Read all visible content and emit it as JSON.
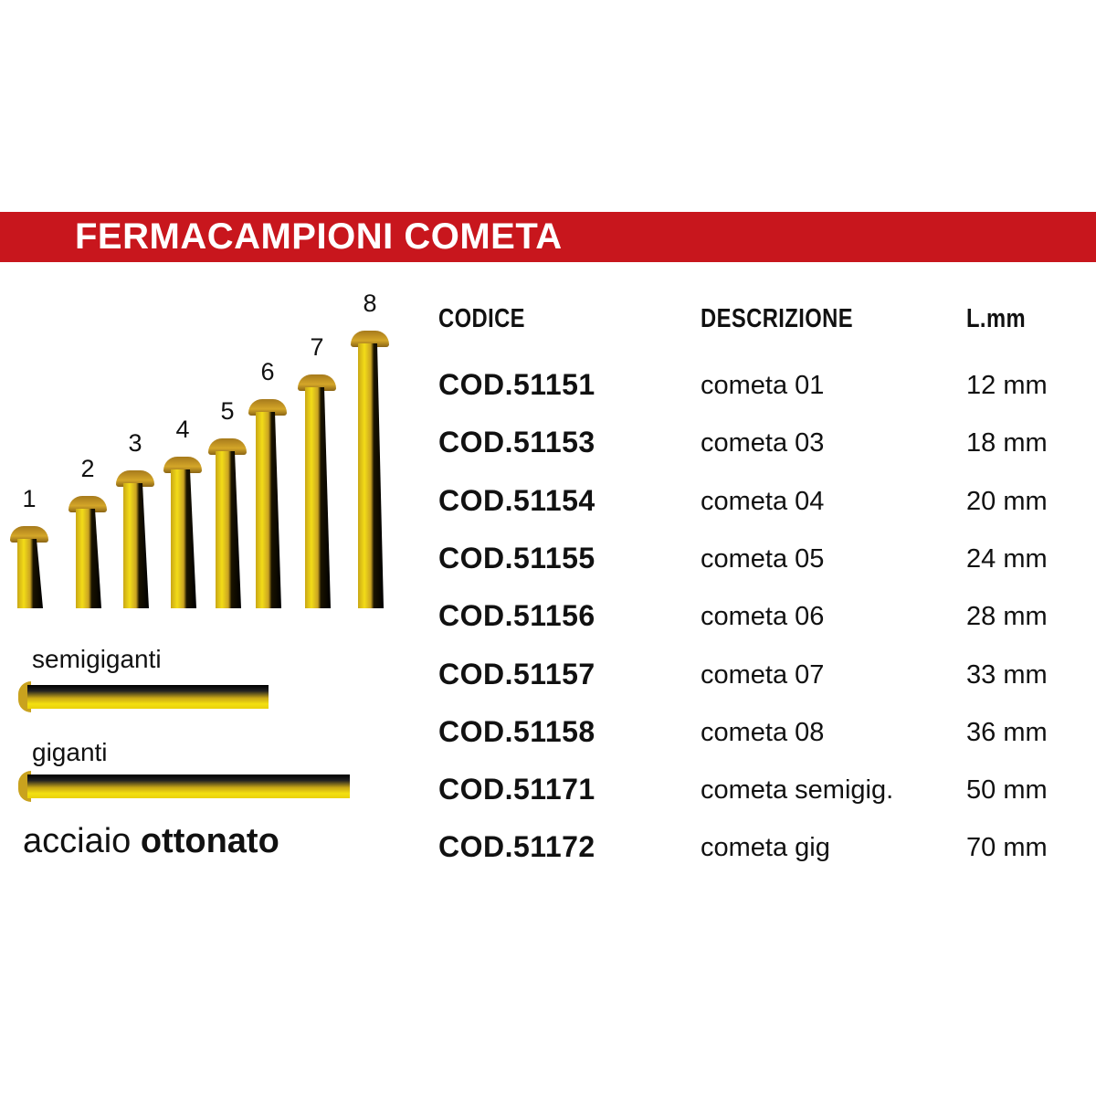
{
  "banner": {
    "title": "FERMACAMPIONI COMETA",
    "color": "#c8161d"
  },
  "nails": {
    "numbers": [
      "1",
      "2",
      "3",
      "4",
      "5",
      "6",
      "7",
      "8"
    ],
    "semigiganti_label": "semigiganti",
    "giganti_label": "giganti",
    "material_light": "acciaio ",
    "material_bold": "ottonato"
  },
  "table": {
    "headers": {
      "code": "CODICE",
      "description": "DESCRIZIONE",
      "length": "L.mm"
    },
    "rows": [
      {
        "code": "COD.51151",
        "description": "cometa 01",
        "length": "12 mm"
      },
      {
        "code": "COD.51153",
        "description": "cometa 03",
        "length": "18 mm"
      },
      {
        "code": "COD.51154",
        "description": "cometa 04",
        "length": "20 mm"
      },
      {
        "code": "COD.51155",
        "description": "cometa 05",
        "length": "24 mm"
      },
      {
        "code": "COD.51156",
        "description": "cometa 06",
        "length": "28 mm"
      },
      {
        "code": "COD.51157",
        "description": "cometa 07",
        "length": "33 mm"
      },
      {
        "code": "COD.51158",
        "description": "cometa 08",
        "length": "36 mm"
      },
      {
        "code": "COD.51171",
        "description": "cometa semigig.",
        "length": "50 mm"
      },
      {
        "code": "COD.51172",
        "description": "cometa gig",
        "length": "70 mm"
      }
    ]
  }
}
